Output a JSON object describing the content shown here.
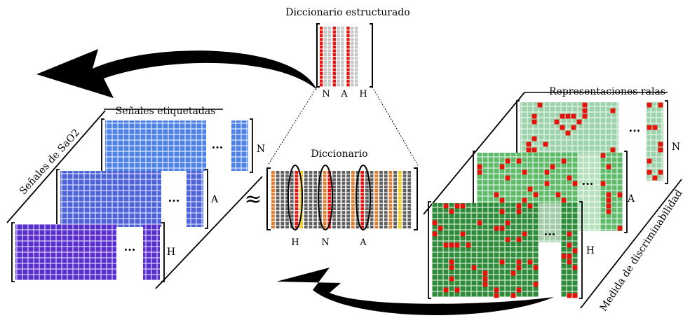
{
  "titles": {
    "structured_dictionary": "Diccionario estructurado",
    "labeled_signals": "Señales etiquetadas",
    "dictionary": "Diccionario",
    "sparse_representations": "Representaciones ralas"
  },
  "side_labels": {
    "sao2_signals": "Señales de SaO2",
    "discriminability": "Medida de discriminabilidad"
  },
  "class_labels": {
    "N": "N",
    "A": "A",
    "H": "H"
  },
  "structured_dictionary_labels": [
    "N",
    "A",
    "H"
  ],
  "dictionary_bottom_labels": [
    "H",
    "N",
    "A"
  ],
  "symbols": {
    "approx": "≈",
    "ellipsis": "···"
  },
  "colors": {
    "signal_N": "#4f82e6",
    "signal_A": "#4f63d8",
    "signal_H": "#5a2fd0",
    "sparse_N": "#9dd3aa",
    "sparse_A": "#5fbb6a",
    "sparse_H": "#2e8b3a",
    "atom_highlight": "#e8120c",
    "dict_gray": "#5f5f5f",
    "dict_orange": "#e27b2a",
    "dict_yellow": "#f2cc1a",
    "struct_gray": "#c6c6c6"
  }
}
